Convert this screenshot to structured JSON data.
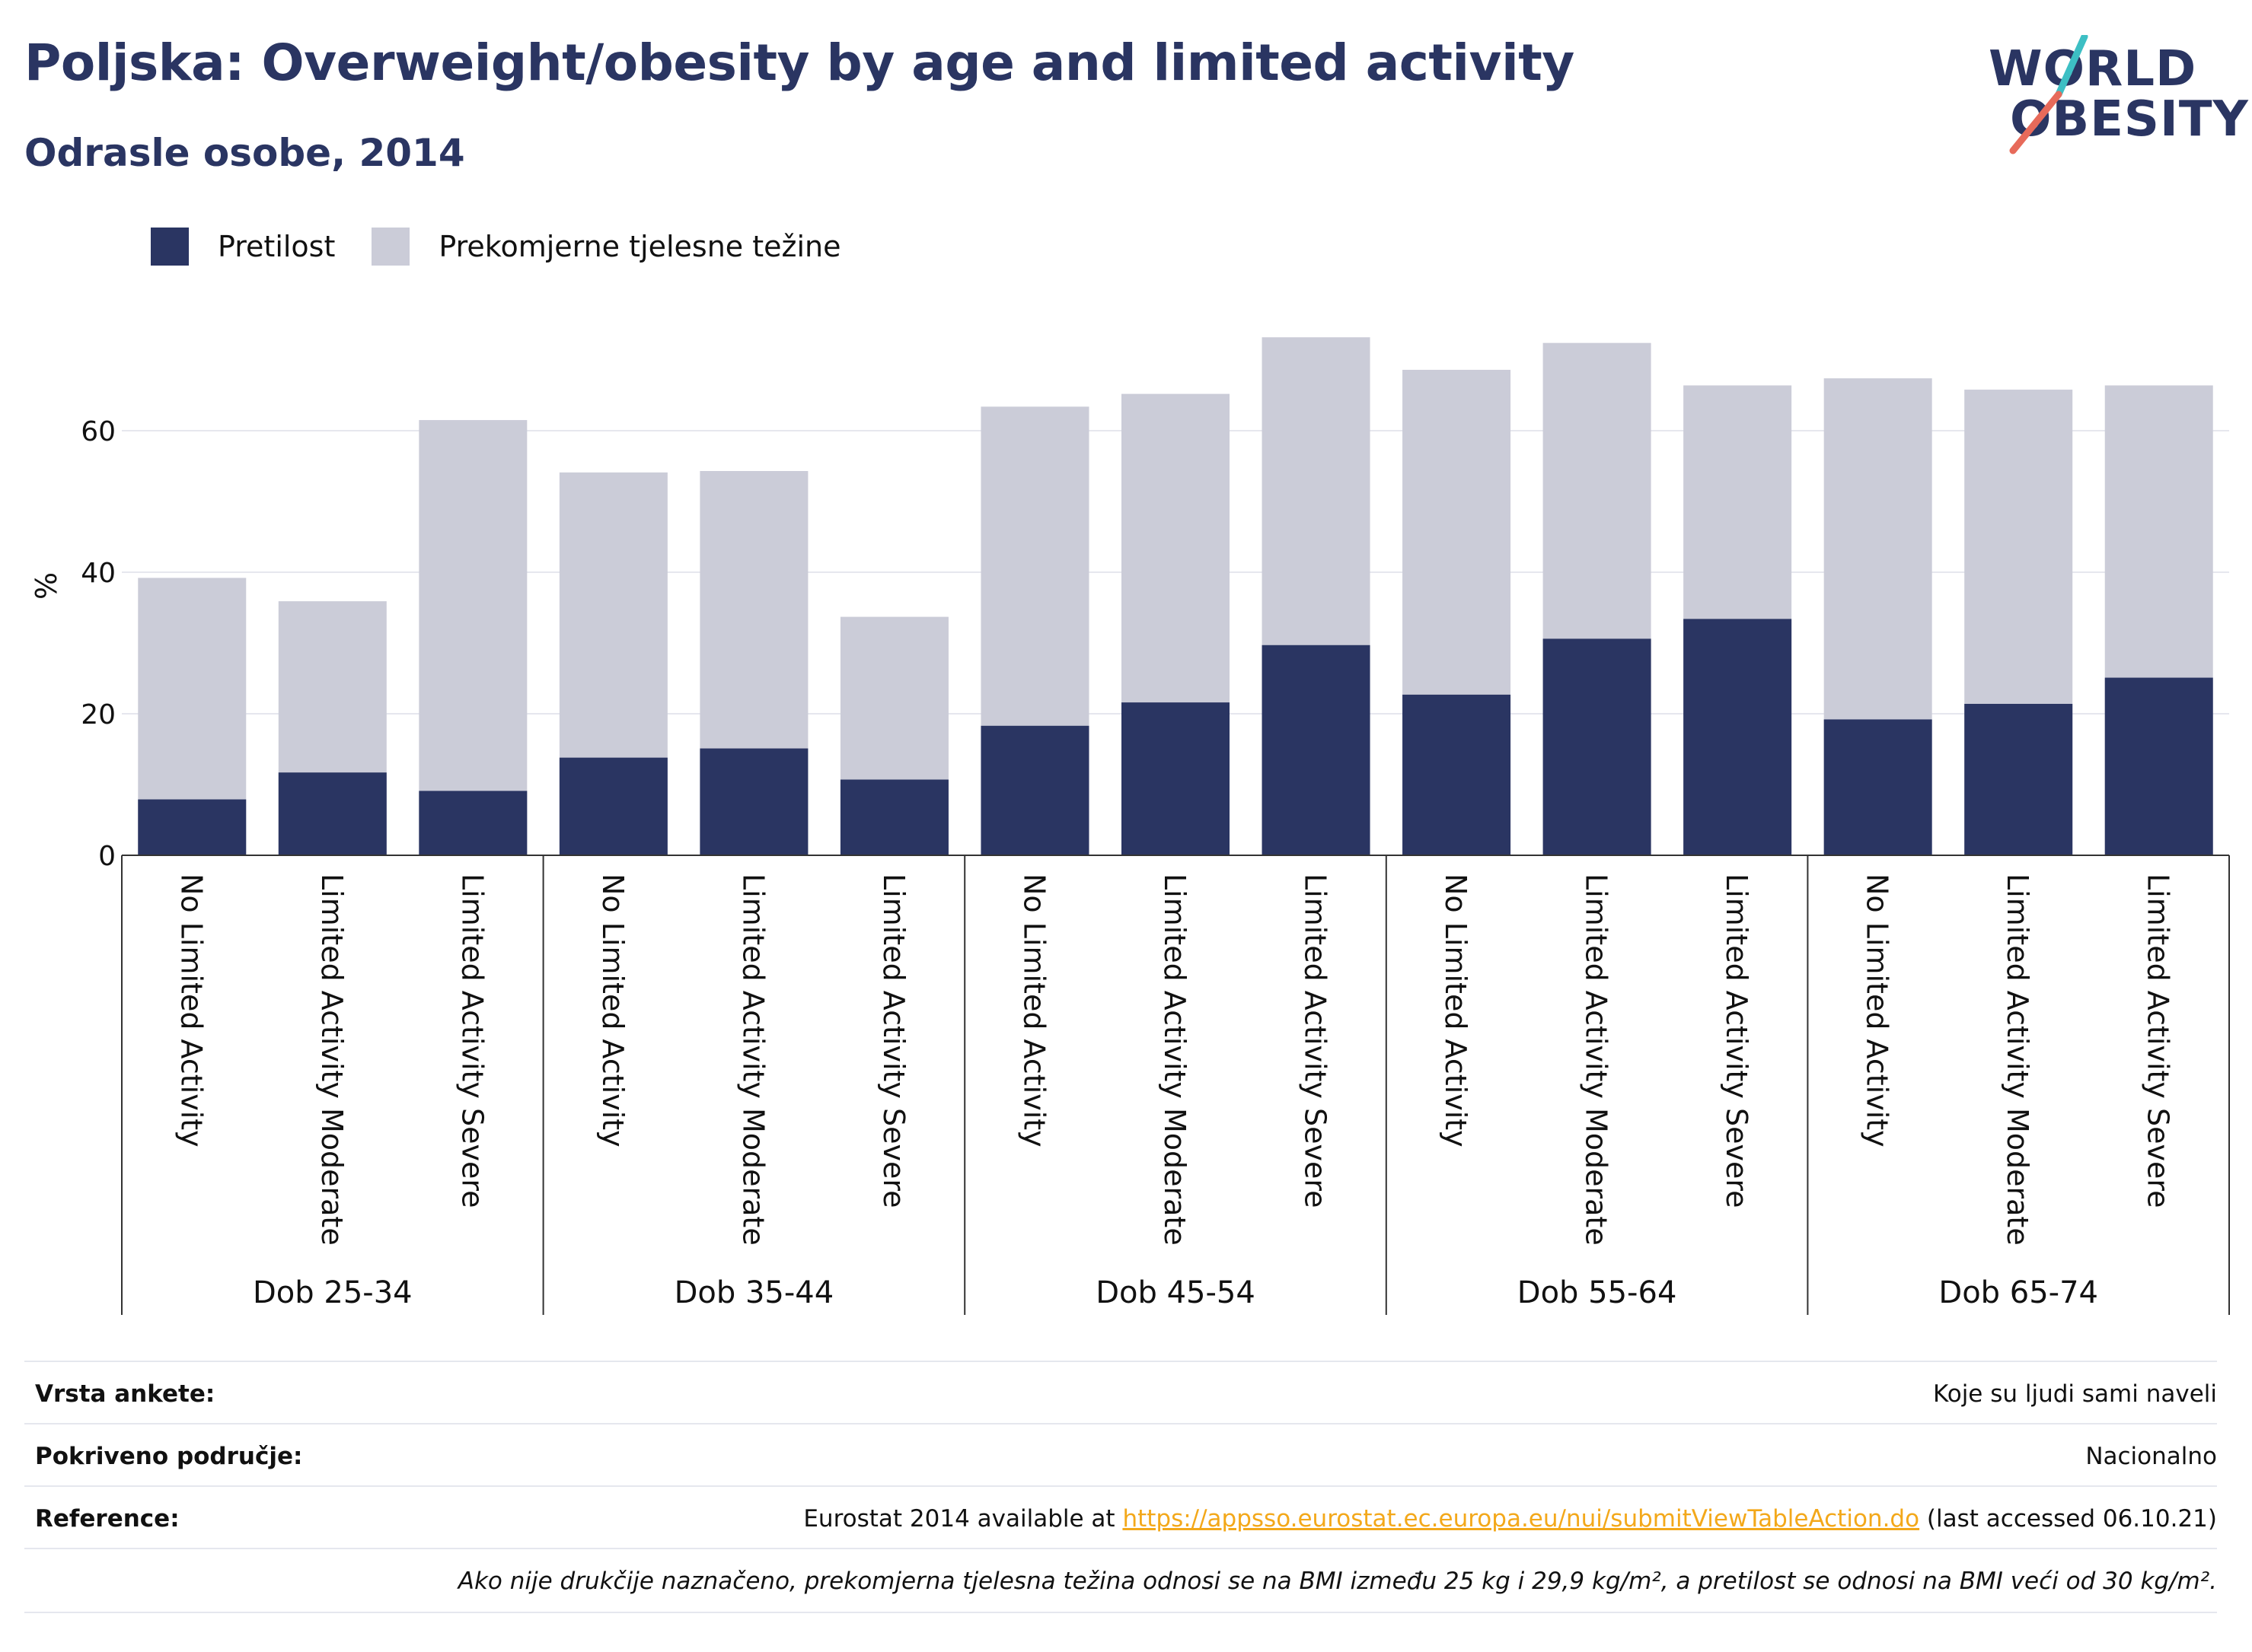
{
  "header": {
    "title": "Poljska: Overweight/obesity by age and limited activity",
    "subtitle": "Odrasle osobe, 2014"
  },
  "logo": {
    "line1": "WORLD",
    "line2": "OBESITY"
  },
  "colors": {
    "obesity": "#2a3562",
    "overweight": "#cbccd8",
    "accent_teal": "#3dbfc4",
    "accent_coral": "#e76a5a",
    "link": "#f3a81a"
  },
  "legend": [
    {
      "label": "Pretilost",
      "color": "#2a3562"
    },
    {
      "label": "Prekomjerne tjelesne težine",
      "color": "#cbccd8"
    }
  ],
  "chart_data": {
    "type": "bar",
    "stacking": "overlay",
    "ylabel": "%",
    "ylim": [
      0,
      75
    ],
    "yticks": [
      0,
      20,
      40,
      60
    ],
    "grid": true,
    "legend_position": "top-left",
    "groups": [
      {
        "label": "Dob 25-34",
        "categories": [
          "No Limited Activity",
          "Limited Activity Moderate",
          "Limited Activity Severe"
        ],
        "obesity": [
          7.9,
          11.7,
          9.1
        ],
        "overweight": [
          39.2,
          35.9,
          61.5
        ]
      },
      {
        "label": "Dob 35-44",
        "categories": [
          "No Limited Activity",
          "Limited Activity Moderate",
          "Limited Activity Severe"
        ],
        "obesity": [
          13.8,
          15.1,
          10.7
        ],
        "overweight": [
          54.1,
          54.3,
          33.7
        ]
      },
      {
        "label": "Dob 45-54",
        "categories": [
          "No Limited Activity",
          "Limited Activity Moderate",
          "Limited Activity Severe"
        ],
        "obesity": [
          18.3,
          21.6,
          29.7
        ],
        "overweight": [
          63.4,
          65.2,
          73.2
        ]
      },
      {
        "label": "Dob 55-64",
        "categories": [
          "No Limited Activity",
          "Limited Activity Moderate",
          "Limited Activity Severe"
        ],
        "obesity": [
          22.7,
          30.6,
          33.4
        ],
        "overweight": [
          68.6,
          72.4,
          66.4
        ]
      },
      {
        "label": "Dob 65-74",
        "categories": [
          "No Limited Activity",
          "Limited Activity Moderate",
          "Limited Activity Severe"
        ],
        "obesity": [
          19.2,
          21.4,
          25.1
        ],
        "overweight": [
          67.4,
          65.8,
          66.4
        ]
      }
    ],
    "series": [
      {
        "name": "Pretilost",
        "key": "obesity"
      },
      {
        "name": "Prekomjerne tjelesne težine",
        "key": "overweight"
      }
    ]
  },
  "info": {
    "survey_label": "Vrsta ankete:",
    "survey_value": "Koje su ljudi sami naveli",
    "area_label": "Pokriveno područje:",
    "area_value": "Nacionalno",
    "ref_label": "Reference:",
    "ref_prefix": "Eurostat 2014 available at ",
    "ref_link": "https://appsso.eurostat.ec.europa.eu/nui/submitViewTableAction.do",
    "ref_suffix": " (last accessed 06.10.21)",
    "note": "Ako nije drukčije naznačeno, prekomjerna tjelesna težina odnosi se na BMI između 25 kg i 29,9 kg/m², a pretilost se odnosi na BMI veći od 30 kg/m²."
  }
}
